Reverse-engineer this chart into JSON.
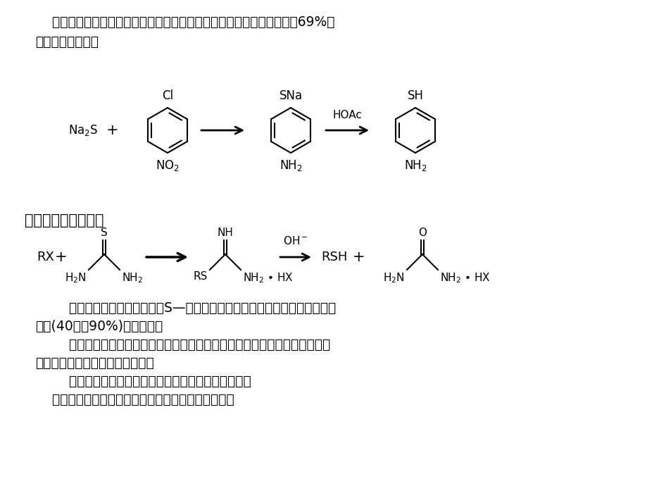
{
  "bg_color": "#ffffff",
  "title_para1": "    硫氢化钓水溶液与对氯础基苯共热，待反应完毕后加入乙酸中和，即得69%产",
  "title_para2": "率的对氨基硫酚。",
  "section_title": "二、硫脲的烃化水解",
  "para1": "        硫脲极易发生烃化反应生成S—烃基异硫脲盐，进一步用碗水解，即以良好",
  "para2": "产率(40％－90%)生成硫醇。",
  "para3": "        此法不仅是合成硫醇的良好方法，亦用于有机分析中的衍生物的制备，常用",
  "para4": "碗性试剂为氮氧化钓水溶液或胺。",
  "para5": "        而能与硫脲反应的烃化试剂则为伯、仲、叔卤代烃、",
  "para6": "    丙烯式卤代烃、苄卤，甚至某些活性芳卤亦可应用。"
}
